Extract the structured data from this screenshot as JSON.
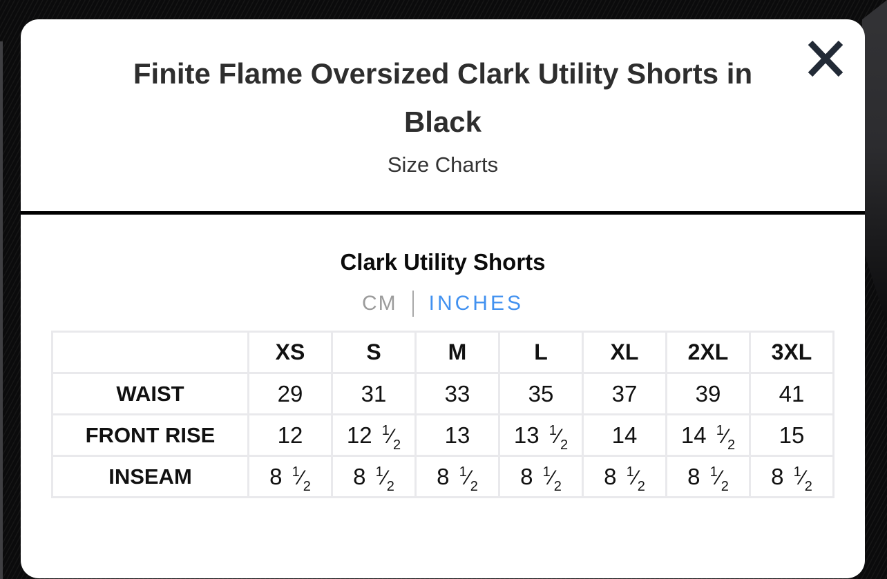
{
  "modal": {
    "title": "Finite Flame Oversized Clark Utility Shorts in Black",
    "subtitle": "Size Charts"
  },
  "sheet": {
    "heading": "Clark Utility Shorts",
    "unit_toggle": {
      "options": [
        {
          "label": "CM",
          "selected": false
        },
        {
          "label": "INCHES",
          "selected": true
        }
      ]
    }
  },
  "size_table": {
    "columns": [
      "XS",
      "S",
      "M",
      "L",
      "XL",
      "2XL",
      "3XL"
    ],
    "rows": [
      {
        "label": "WAIST",
        "values": [
          "29",
          "31",
          "33",
          "35",
          "37",
          "39",
          "41"
        ]
      },
      {
        "label": "FRONT RISE",
        "values": [
          "12",
          "12 1/2",
          "13",
          "13 1/2",
          "14",
          "14 1/2",
          "15"
        ]
      },
      {
        "label": "INSEAM",
        "values": [
          "8 1/2",
          "8 1/2",
          "8 1/2",
          "8 1/2",
          "8 1/2",
          "8 1/2",
          "8 1/2"
        ]
      }
    ]
  },
  "icons": {
    "close": "x-icon"
  },
  "colors": {
    "page_bg": "#0b0b0c",
    "modal_bg": "#ffffff",
    "divider": "#000000",
    "title_text": "#2e2e2e",
    "accent_blue": "#4191f0",
    "inactive_gray": "#9b9b9b",
    "close_icon": "#222a36",
    "table_border": "#e9e9ec"
  }
}
